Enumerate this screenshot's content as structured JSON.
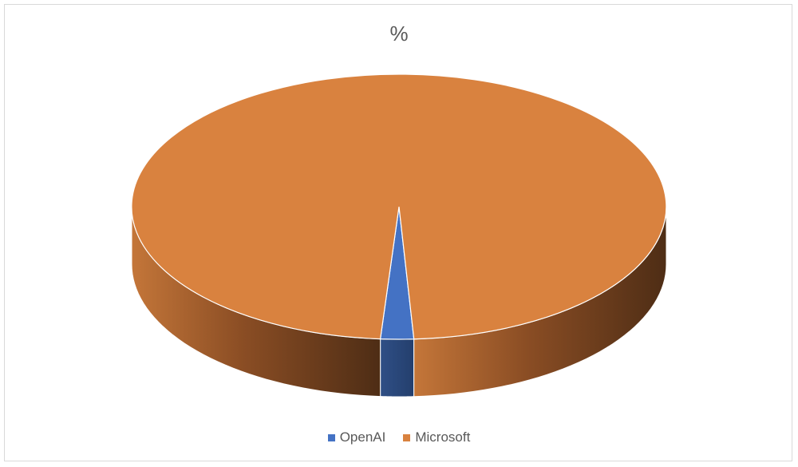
{
  "chart_data": {
    "type": "pie",
    "title": "%",
    "categories": [
      "OpenAI",
      "Microsoft"
    ],
    "values": [
      2,
      98
    ],
    "series": [
      {
        "values": [
          2,
          98
        ]
      }
    ],
    "colors": [
      "#4472c4",
      "#d9823f"
    ],
    "legend_position": "bottom",
    "style": "3d-pie"
  }
}
